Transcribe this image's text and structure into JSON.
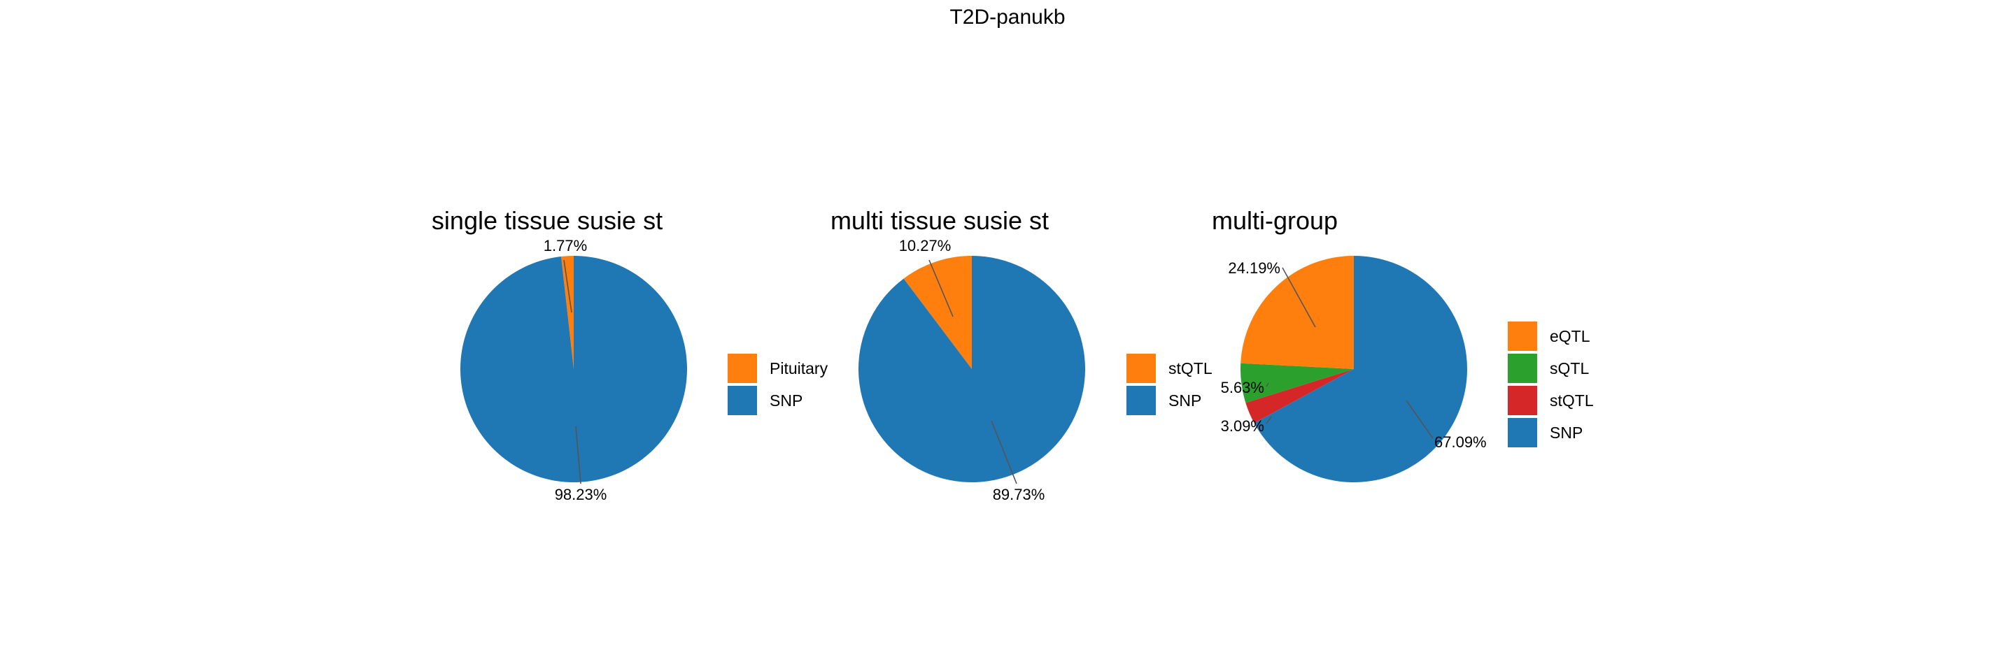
{
  "title": "T2D-panukb",
  "colors": {
    "SNP": "#1f77b4",
    "Pituitary": "#ff7f0e",
    "eQTL": "#ff7f0e",
    "stQTL_multi": "#ff7f0e",
    "sQTL": "#2ca02c",
    "stQTL": "#d62728"
  },
  "chart_data": [
    {
      "type": "pie",
      "title": "single tissue susie st",
      "slices": [
        {
          "label": "Pituitary",
          "value": 1.77,
          "pct_label": "1.77%",
          "color": "#ff7f0e"
        },
        {
          "label": "SNP",
          "value": 98.23,
          "pct_label": "98.23%",
          "color": "#1f77b4"
        }
      ],
      "legend": [
        "Pituitary",
        "SNP"
      ],
      "legend_placement": "right"
    },
    {
      "type": "pie",
      "title": "multi tissue susie st",
      "slices": [
        {
          "label": "stQTL",
          "value": 10.27,
          "pct_label": "10.27%",
          "color": "#ff7f0e"
        },
        {
          "label": "SNP",
          "value": 89.73,
          "pct_label": "89.73%",
          "color": "#1f77b4"
        }
      ],
      "legend": [
        "stQTL",
        "SNP"
      ],
      "legend_placement": "right"
    },
    {
      "type": "pie",
      "title": "multi-group",
      "slices": [
        {
          "label": "eQTL",
          "value": 24.19,
          "pct_label": "24.19%",
          "color": "#ff7f0e"
        },
        {
          "label": "sQTL",
          "value": 5.63,
          "pct_label": "5.63%",
          "color": "#2ca02c"
        },
        {
          "label": "stQTL",
          "value": 3.09,
          "pct_label": "3.09%",
          "color": "#d62728"
        },
        {
          "label": "SNP",
          "value": 67.09,
          "pct_label": "67.09%",
          "color": "#1f77b4"
        }
      ],
      "legend": [
        "eQTL",
        "sQTL",
        "stQTL",
        "SNP"
      ],
      "legend_placement": "right"
    }
  ]
}
